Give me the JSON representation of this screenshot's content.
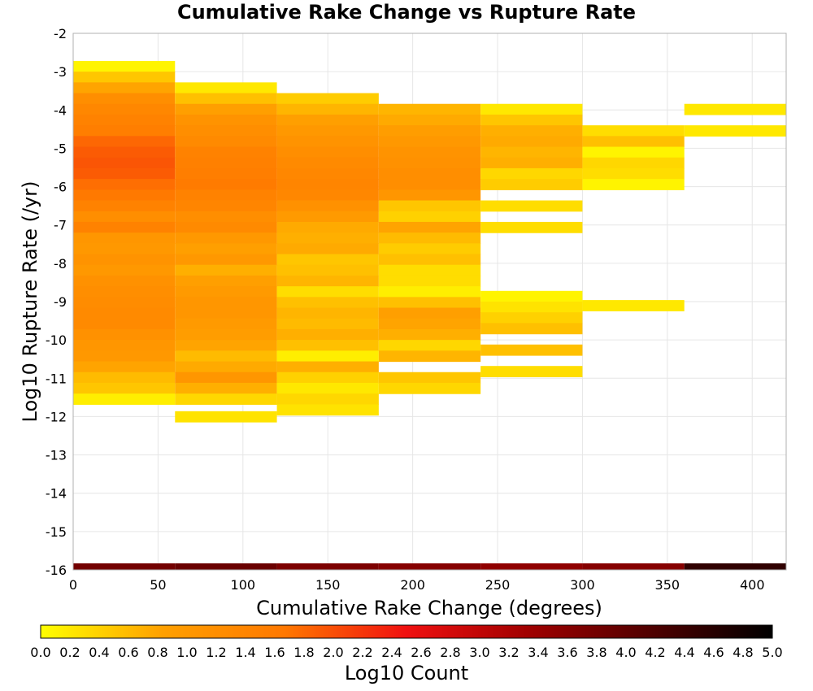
{
  "chart_data": {
    "type": "heatmap",
    "title": "Cumulative Rake Change vs Rupture Rate",
    "xlabel": "Cumulative Rake Change (degrees)",
    "ylabel": "Log10 Rupture Rate (/yr)",
    "xlim": [
      0,
      420
    ],
    "ylim": [
      -16,
      -2
    ],
    "x_ticks": [
      "0",
      "50",
      "100",
      "150",
      "200",
      "250",
      "300",
      "350",
      "400"
    ],
    "y_ticks": [
      "-2",
      "-3",
      "-4",
      "-5",
      "-6",
      "-7",
      "-8",
      "-9",
      "-10",
      "-11",
      "-12",
      "-13",
      "-14",
      "-15",
      "-16"
    ],
    "grid": true,
    "x_bin_width": 60,
    "y_bin_height": 0.28,
    "colorbar": {
      "label": "Log10 Count",
      "range": [
        0,
        5
      ],
      "ticks": [
        "0.0",
        "0.2",
        "0.4",
        "0.6",
        "0.8",
        "1.0",
        "1.2",
        "1.4",
        "1.6",
        "1.8",
        "2.0",
        "2.2",
        "2.4",
        "2.6",
        "2.8",
        "3.0",
        "3.2",
        "3.4",
        "3.6",
        "3.8",
        "4.0",
        "4.2",
        "4.4",
        "4.6",
        "4.8",
        "5.0"
      ],
      "colors": [
        "#ffff00",
        "#ffa000",
        "#ff7800",
        "#f01010",
        "#a00000",
        "#500000",
        "#000000"
      ]
    },
    "columns": [
      {
        "x_start": 0,
        "bottom_row": 3.8,
        "rows": [
          {
            "y_top": -2.72,
            "value": 0.1
          },
          {
            "y_top": -3.0,
            "value": 0.5
          },
          {
            "y_top": -3.28,
            "value": 0.8
          },
          {
            "y_top": -3.56,
            "value": 1.2
          },
          {
            "y_top": -3.84,
            "value": 1.35
          },
          {
            "y_top": -4.12,
            "value": 1.45
          },
          {
            "y_top": -4.4,
            "value": 1.55
          },
          {
            "y_top": -4.68,
            "value": 1.8
          },
          {
            "y_top": -4.96,
            "value": 1.9
          },
          {
            "y_top": -5.24,
            "value": 1.95
          },
          {
            "y_top": -5.52,
            "value": 1.9
          },
          {
            "y_top": -5.8,
            "value": 1.75
          },
          {
            "y_top": -6.08,
            "value": 1.65
          },
          {
            "y_top": -6.36,
            "value": 1.45
          },
          {
            "y_top": -6.64,
            "value": 1.2
          },
          {
            "y_top": -6.92,
            "value": 1.45
          },
          {
            "y_top": -7.2,
            "value": 1.05
          },
          {
            "y_top": -7.48,
            "value": 1.0
          },
          {
            "y_top": -7.76,
            "value": 1.1
          },
          {
            "y_top": -8.04,
            "value": 1.0
          },
          {
            "y_top": -8.32,
            "value": 1.15
          },
          {
            "y_top": -8.6,
            "value": 1.2
          },
          {
            "y_top": -8.88,
            "value": 1.25
          },
          {
            "y_top": -9.16,
            "value": 1.3
          },
          {
            "y_top": -9.44,
            "value": 1.3
          },
          {
            "y_top": -9.72,
            "value": 1.15
          },
          {
            "y_top": -10.0,
            "value": 1.05
          },
          {
            "y_top": -10.28,
            "value": 1.0
          },
          {
            "y_top": -10.56,
            "value": 0.8
          },
          {
            "y_top": -10.84,
            "value": 0.6
          },
          {
            "y_top": -11.12,
            "value": 0.5
          },
          {
            "y_top": -11.4,
            "value": 0.15
          }
        ]
      },
      {
        "x_start": 60,
        "bottom_row": 3.9,
        "rows": [
          {
            "y_top": -3.28,
            "value": 0.2
          },
          {
            "y_top": -3.56,
            "value": 0.55
          },
          {
            "y_top": -3.84,
            "value": 0.85
          },
          {
            "y_top": -4.12,
            "value": 1.1
          },
          {
            "y_top": -4.4,
            "value": 1.2
          },
          {
            "y_top": -4.68,
            "value": 1.3
          },
          {
            "y_top": -4.96,
            "value": 1.45
          },
          {
            "y_top": -5.24,
            "value": 1.5
          },
          {
            "y_top": -5.52,
            "value": 1.55
          },
          {
            "y_top": -5.8,
            "value": 1.6
          },
          {
            "y_top": -6.08,
            "value": 1.45
          },
          {
            "y_top": -6.36,
            "value": 1.4
          },
          {
            "y_top": -6.64,
            "value": 1.2
          },
          {
            "y_top": -6.92,
            "value": 1.3
          },
          {
            "y_top": -7.2,
            "value": 1.0
          },
          {
            "y_top": -7.48,
            "value": 0.85
          },
          {
            "y_top": -7.76,
            "value": 1.0
          },
          {
            "y_top": -8.04,
            "value": 0.7
          },
          {
            "y_top": -8.32,
            "value": 0.85
          },
          {
            "y_top": -8.6,
            "value": 0.95
          },
          {
            "y_top": -8.88,
            "value": 1.05
          },
          {
            "y_top": -9.16,
            "value": 1.05
          },
          {
            "y_top": -9.44,
            "value": 0.95
          },
          {
            "y_top": -9.72,
            "value": 0.9
          },
          {
            "y_top": -10.0,
            "value": 0.8
          },
          {
            "y_top": -10.28,
            "value": 0.6
          },
          {
            "y_top": -10.56,
            "value": 0.75
          },
          {
            "y_top": -10.84,
            "value": 1.05
          },
          {
            "y_top": -11.12,
            "value": 0.7
          },
          {
            "y_top": -11.4,
            "value": 0.35
          },
          {
            "y_top": -11.86,
            "value": 0.25
          }
        ]
      },
      {
        "x_start": 120,
        "bottom_row": 3.7,
        "rows": [
          {
            "y_top": -3.56,
            "value": 0.45
          },
          {
            "y_top": -3.84,
            "value": 0.65
          },
          {
            "y_top": -4.12,
            "value": 0.85
          },
          {
            "y_top": -4.4,
            "value": 1.0
          },
          {
            "y_top": -4.68,
            "value": 1.1
          },
          {
            "y_top": -4.96,
            "value": 1.2
          },
          {
            "y_top": -5.24,
            "value": 1.3
          },
          {
            "y_top": -5.52,
            "value": 1.35
          },
          {
            "y_top": -5.8,
            "value": 1.4
          },
          {
            "y_top": -6.08,
            "value": 1.35
          },
          {
            "y_top": -6.36,
            "value": 1.15
          },
          {
            "y_top": -6.64,
            "value": 0.95
          },
          {
            "y_top": -6.92,
            "value": 0.75
          },
          {
            "y_top": -7.2,
            "value": 0.7
          },
          {
            "y_top": -7.48,
            "value": 0.75
          },
          {
            "y_top": -7.76,
            "value": 0.5
          },
          {
            "y_top": -8.04,
            "value": 0.55
          },
          {
            "y_top": -8.32,
            "value": 0.65
          },
          {
            "y_top": -8.6,
            "value": 0.3
          },
          {
            "y_top": -8.88,
            "value": 0.55
          },
          {
            "y_top": -9.16,
            "value": 0.65
          },
          {
            "y_top": -9.44,
            "value": 0.6
          },
          {
            "y_top": -9.72,
            "value": 0.7
          },
          {
            "y_top": -10.0,
            "value": 0.55
          },
          {
            "y_top": -10.28,
            "value": 0.15
          },
          {
            "y_top": -10.56,
            "value": 0.7
          },
          {
            "y_top": -10.84,
            "value": 0.4
          },
          {
            "y_top": -11.12,
            "value": 0.2
          },
          {
            "y_top": -11.4,
            "value": 0.35
          },
          {
            "y_top": -11.68,
            "value": 0.25
          }
        ]
      },
      {
        "x_start": 180,
        "bottom_row": 3.6,
        "rows": [
          {
            "y_top": -3.84,
            "value": 0.65
          },
          {
            "y_top": -4.12,
            "value": 0.75
          },
          {
            "y_top": -4.4,
            "value": 0.9
          },
          {
            "y_top": -4.68,
            "value": 1.0
          },
          {
            "y_top": -4.96,
            "value": 1.1
          },
          {
            "y_top": -5.24,
            "value": 1.15
          },
          {
            "y_top": -5.52,
            "value": 1.2
          },
          {
            "y_top": -5.8,
            "value": 1.2
          },
          {
            "y_top": -6.08,
            "value": 1.05
          },
          {
            "y_top": -6.36,
            "value": 0.5
          },
          {
            "y_top": -6.64,
            "value": 0.4
          },
          {
            "y_top": -6.92,
            "value": 0.8
          },
          {
            "y_top": -7.2,
            "value": 0.6
          },
          {
            "y_top": -7.48,
            "value": 0.45
          },
          {
            "y_top": -7.76,
            "value": 0.55
          },
          {
            "y_top": -8.04,
            "value": 0.3
          },
          {
            "y_top": -8.32,
            "value": 0.3
          },
          {
            "y_top": -8.6,
            "value": 0.15
          },
          {
            "y_top": -8.88,
            "value": 0.55
          },
          {
            "y_top": -9.16,
            "value": 0.85
          },
          {
            "y_top": -9.44,
            "value": 0.8
          },
          {
            "y_top": -9.72,
            "value": 0.7
          },
          {
            "y_top": -10.0,
            "value": 0.35
          },
          {
            "y_top": -10.28,
            "value": 0.65
          },
          {
            "y_top": -10.84,
            "value": 0.5
          },
          {
            "y_top": -11.12,
            "value": 0.35
          }
        ]
      },
      {
        "x_start": 240,
        "bottom_row": 3.5,
        "rows": [
          {
            "y_top": -3.84,
            "value": 0.2
          },
          {
            "y_top": -4.12,
            "value": 0.5
          },
          {
            "y_top": -4.4,
            "value": 0.7
          },
          {
            "y_top": -4.68,
            "value": 0.75
          },
          {
            "y_top": -4.96,
            "value": 0.65
          },
          {
            "y_top": -5.24,
            "value": 0.7
          },
          {
            "y_top": -5.52,
            "value": 0.35
          },
          {
            "y_top": -5.8,
            "value": 0.45
          },
          {
            "y_top": -6.36,
            "value": 0.3
          },
          {
            "y_top": -6.92,
            "value": 0.3
          },
          {
            "y_top": -8.72,
            "value": 0.1
          },
          {
            "y_top": -9.0,
            "value": 0.25
          },
          {
            "y_top": -9.28,
            "value": 0.4
          },
          {
            "y_top": -9.56,
            "value": 0.55
          },
          {
            "y_top": -10.12,
            "value": 0.55
          },
          {
            "y_top": -10.68,
            "value": 0.3
          }
        ]
      },
      {
        "x_start": 300,
        "bottom_row": 3.6,
        "rows": [
          {
            "y_top": -4.4,
            "value": 0.3
          },
          {
            "y_top": -4.68,
            "value": 0.55
          },
          {
            "y_top": -4.96,
            "value": 0.1
          },
          {
            "y_top": -5.24,
            "value": 0.35
          },
          {
            "y_top": -5.52,
            "value": 0.3
          },
          {
            "y_top": -5.8,
            "value": 0.1
          },
          {
            "y_top": -8.96,
            "value": 0.2
          }
        ]
      },
      {
        "x_start": 360,
        "bottom_row": 4.5,
        "rows": [
          {
            "y_top": -3.84,
            "value": 0.2
          },
          {
            "y_top": -4.4,
            "value": 0.2
          }
        ]
      }
    ]
  }
}
